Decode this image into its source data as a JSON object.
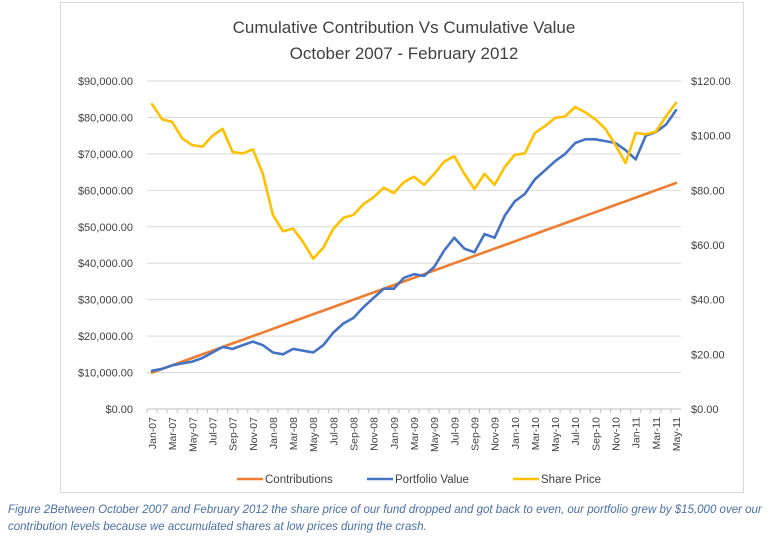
{
  "chart_data": {
    "type": "line",
    "title": "Cumulative Contribution Vs Cumulative Value",
    "subtitle": "October 2007 - February 2012",
    "x": [
      "Jan-07",
      "Feb-07",
      "Mar-07",
      "Apr-07",
      "May-07",
      "Jun-07",
      "Jul-07",
      "Aug-07",
      "Sep-07",
      "Oct-07",
      "Nov-07",
      "Dec-07",
      "Jan-08",
      "Feb-08",
      "Mar-08",
      "Apr-08",
      "May-08",
      "Jun-08",
      "Jul-08",
      "Aug-08",
      "Sep-08",
      "Oct-08",
      "Nov-08",
      "Dec-08",
      "Jan-09",
      "Feb-09",
      "Mar-09",
      "Apr-09",
      "May-09",
      "Jun-09",
      "Jul-09",
      "Aug-09",
      "Sep-09",
      "Oct-09",
      "Nov-09",
      "Dec-09",
      "Jan-10",
      "Feb-10",
      "Mar-10",
      "Apr-10",
      "May-10",
      "Jun-10",
      "Jul-10",
      "Aug-10",
      "Sep-10",
      "Oct-10",
      "Nov-10",
      "Dec-10",
      "Jan-11",
      "Feb-11",
      "Mar-11",
      "Apr-11",
      "May-11"
    ],
    "x_tick_labels": [
      "Jan-07",
      "Mar-07",
      "May-07",
      "Jul-07",
      "Sep-07",
      "Nov-07",
      "Jan-08",
      "Mar-08",
      "May-08",
      "Jul-08",
      "Sep-08",
      "Nov-08",
      "Jan-09",
      "Mar-09",
      "May-09",
      "Jul-09",
      "Sep-09",
      "Nov-09",
      "Jan-10",
      "Mar-10",
      "May-10",
      "Jul-10",
      "Sep-10",
      "Nov-10",
      "Jan-11",
      "Mar-11",
      "May-11"
    ],
    "y_left": {
      "ticks": [
        "$0.00",
        "$10,000.00",
        "$20,000.00",
        "$30,000.00",
        "$40,000.00",
        "$50,000.00",
        "$60,000.00",
        "$70,000.00",
        "$80,000.00",
        "$90,000.00"
      ],
      "range": [
        0,
        90000
      ]
    },
    "y_right": {
      "ticks": [
        "$0.00",
        "$20.00",
        "$40.00",
        "$60.00",
        "$80.00",
        "$100.00",
        "$120.00"
      ],
      "range": [
        0,
        120
      ]
    },
    "series": [
      {
        "name": "Contributions",
        "axis": "left",
        "color": "#ED7D31",
        "values": [
          10000,
          11000,
          12000,
          13000,
          14000,
          15000,
          16000,
          17000,
          18000,
          19000,
          20000,
          21000,
          22000,
          23000,
          24000,
          25000,
          26000,
          27000,
          28000,
          29000,
          30000,
          31000,
          32000,
          33000,
          34000,
          35000,
          36000,
          37000,
          38000,
          39000,
          40000,
          41000,
          42000,
          43000,
          44000,
          45000,
          46000,
          47000,
          48000,
          49000,
          50000,
          51000,
          52000,
          53000,
          54000,
          55000,
          56000,
          57000,
          58000,
          59000,
          60000,
          61000,
          62000
        ]
      },
      {
        "name": "Portfolio Value",
        "axis": "left",
        "color": "#4472C4",
        "values": [
          10500,
          11000,
          12000,
          12500,
          13000,
          14000,
          15500,
          17000,
          16500,
          17500,
          18500,
          17500,
          15500,
          15000,
          16500,
          16000,
          15500,
          17500,
          21000,
          23500,
          25000,
          28000,
          30500,
          33000,
          33000,
          36000,
          37000,
          36500,
          39000,
          43500,
          47000,
          44000,
          43000,
          48000,
          47000,
          53000,
          57000,
          59000,
          63000,
          65500,
          68000,
          70000,
          73000,
          74000,
          74000,
          73500,
          73000,
          71000,
          68500,
          75000,
          76000,
          78000,
          82000
        ]
      },
      {
        "name": "Share Price",
        "axis": "right",
        "color": "#FFC000",
        "values": [
          111.5,
          106,
          105,
          99,
          96.5,
          96,
          100,
          102.5,
          94,
          93.5,
          95,
          86,
          71,
          65,
          66,
          61,
          55,
          59,
          66,
          70,
          71,
          75,
          77.5,
          81,
          79,
          83,
          85,
          82,
          86,
          90.5,
          92.5,
          86,
          80.5,
          86,
          82,
          88.5,
          93,
          93.5,
          101,
          103.5,
          106.5,
          107,
          110.5,
          108.5,
          106,
          102.5,
          96.5,
          90,
          101,
          100.5,
          101.5,
          107,
          112
        ]
      }
    ],
    "legend_position": "bottom",
    "grid": "horizontal"
  },
  "caption": "Figure 2Between October 2007 and February 2012 the share price of our fund dropped and got back to even, our portfolio grew by $15,000 over our contribution levels because we accumulated shares at low prices during the crash."
}
